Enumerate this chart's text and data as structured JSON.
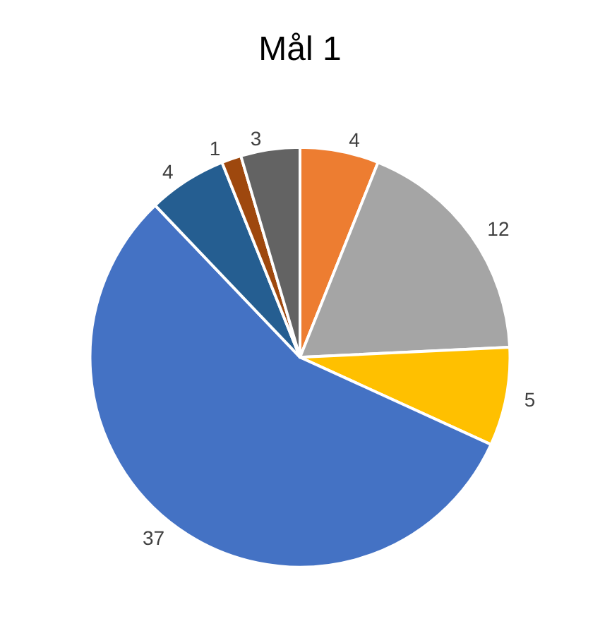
{
  "chart_data": {
    "type": "pie",
    "title": "Mål 1",
    "categories": [
      null,
      null,
      null,
      null,
      null,
      null,
      null
    ],
    "values": [
      4,
      12,
      5,
      37,
      4,
      1,
      3
    ],
    "colors": [
      "#ed7d31",
      "#a5a5a5",
      "#ffc000",
      "#4472c4",
      "#255e91",
      "#9e480e",
      "#636363"
    ],
    "data_labels": true
  }
}
